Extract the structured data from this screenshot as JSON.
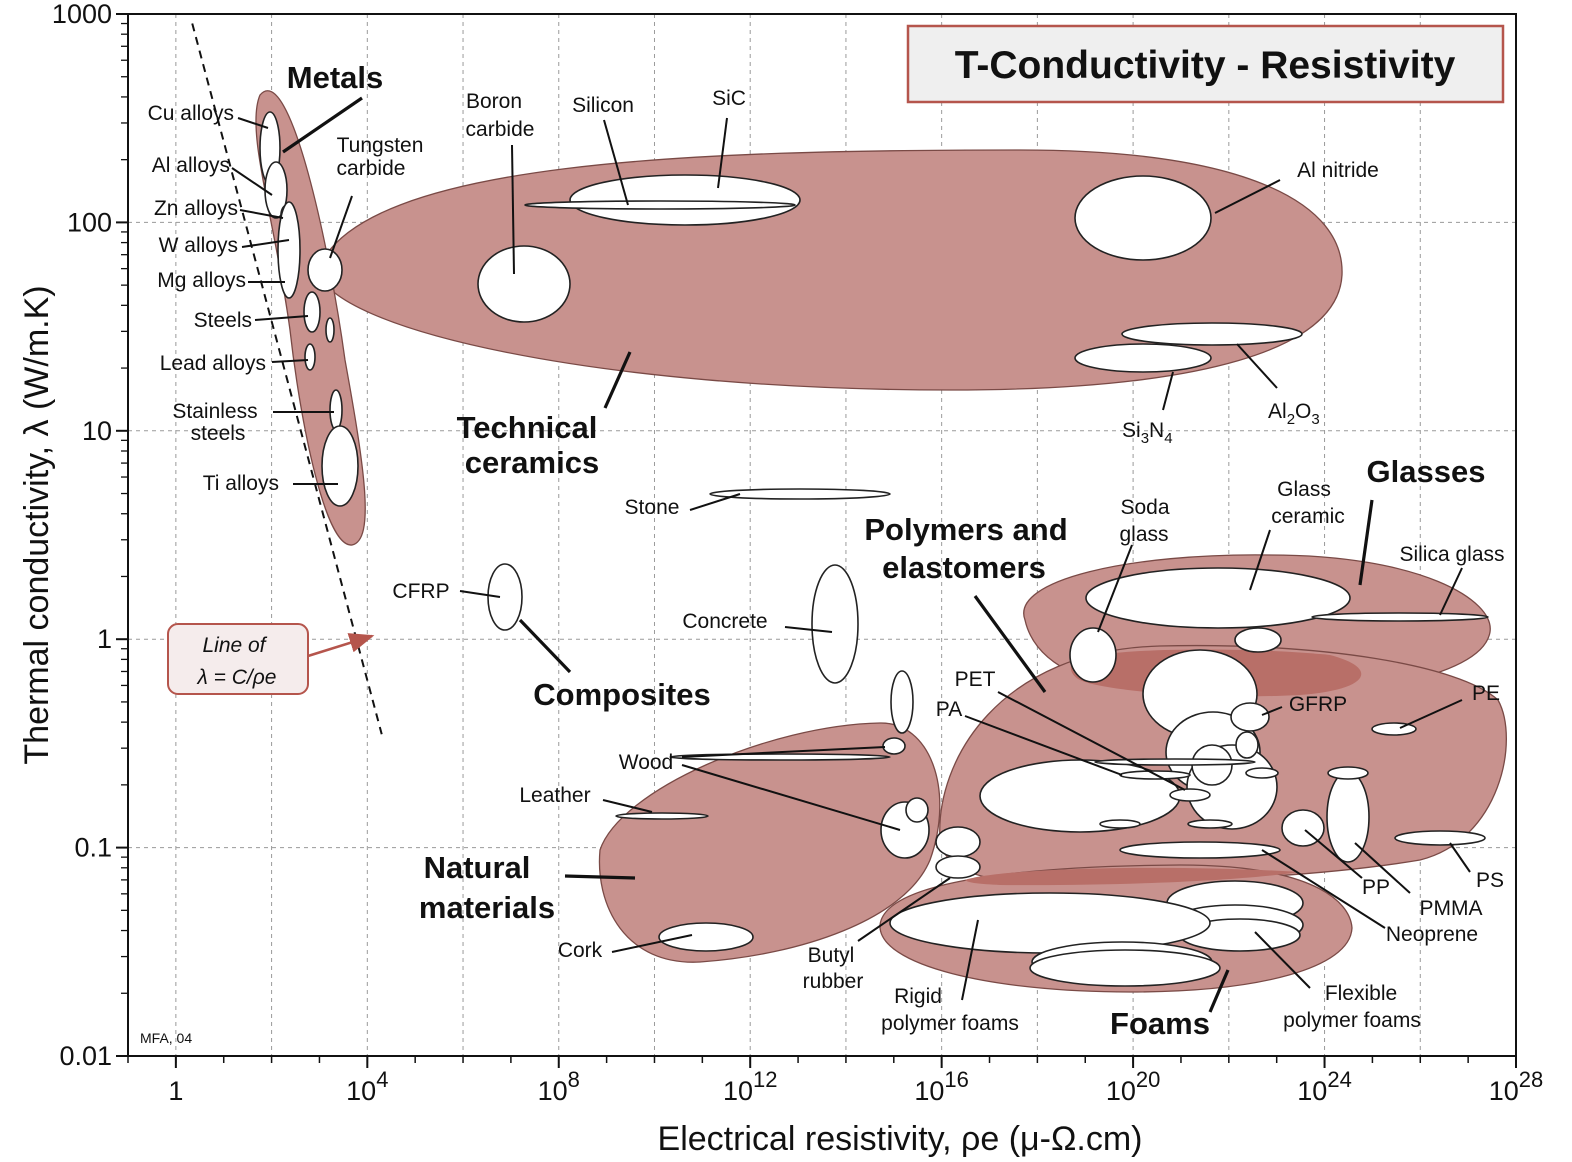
{
  "chart_data": {
    "type": "scatter",
    "title": "T-Conductivity - Resistivity",
    "credit": "MFA, 04",
    "xlabel": "Electrical resistivity, ρe (μ-Ω.cm)",
    "ylabel": "Thermal conductivity, λ (W/m.K)",
    "x_scale": "log",
    "y_scale": "log",
    "xlim": [
      0.1,
      1e+28
    ],
    "ylim": [
      0.01,
      1000
    ],
    "grid": true,
    "x_ticks": [
      {
        "value": 1,
        "label": "1"
      },
      {
        "value": 10000.0,
        "base": "10",
        "exp": "4"
      },
      {
        "value": 100000000.0,
        "base": "10",
        "exp": "8"
      },
      {
        "value": 1000000000000.0,
        "base": "10",
        "exp": "12"
      },
      {
        "value": 1e+16,
        "base": "10",
        "exp": "16"
      },
      {
        "value": 1e+20,
        "base": "10",
        "exp": "20"
      },
      {
        "value": 1e+24,
        "base": "10",
        "exp": "24"
      },
      {
        "value": 1e+28,
        "base": "10",
        "exp": "28"
      }
    ],
    "y_ticks": [
      {
        "value": 1000,
        "label": "1000"
      },
      {
        "value": 100,
        "label": "100"
      },
      {
        "value": 10,
        "label": "10"
      },
      {
        "value": 1,
        "label": "1"
      },
      {
        "value": 0.1,
        "label": "0.1"
      },
      {
        "value": 0.01,
        "label": "0.01"
      }
    ],
    "guide_line": {
      "label_line1": "Line of",
      "label_line2": "λ = C/ρe",
      "from": [
        2.2,
        900
      ],
      "to": [
        20000.0,
        0.35
      ]
    },
    "families": [
      {
        "name": "Metals",
        "x_range": [
          1.5,
          60
        ],
        "y_range": [
          3,
          450
        ]
      },
      {
        "name": "Technical ceramics",
        "x_range": [
          15,
          3e+24
        ],
        "y_range": [
          17,
          230
        ]
      },
      {
        "name": "Composites",
        "x": 1000000.0,
        "y": 1.4
      },
      {
        "name": "Natural materials",
        "x_range": [
          100000000.0,
          1000000000000000.0
        ],
        "y_range": [
          0.02,
          0.4
        ]
      },
      {
        "name": "Polymers and elastomers",
        "x_range": [
          1e+16,
          1e+27
        ],
        "y_range": [
          0.06,
          0.9
        ]
      },
      {
        "name": "Glasses",
        "x_range": [
          1e+17,
          1e+27
        ],
        "y_range": [
          0.55,
          4
        ]
      },
      {
        "name": "Foams",
        "x_range": [
          100000000000000.0,
          1e+25
        ],
        "y_range": [
          0.018,
          0.08
        ]
      }
    ],
    "materials": [
      {
        "name": "Cu alloys",
        "family": "Metals",
        "x_range": [
          1.5,
          4.5
        ],
        "y_range": [
          160,
          400
        ]
      },
      {
        "name": "Al alloys",
        "family": "Metals",
        "x_range": [
          2.5,
          8
        ],
        "y_range": [
          76,
          240
        ]
      },
      {
        "name": "Zn alloys",
        "family": "Metals",
        "x_range": [
          5.5,
          7
        ],
        "y_range": [
          100,
          135
        ]
      },
      {
        "name": "W alloys",
        "family": "Metals",
        "x_range": [
          5,
          10
        ],
        "y_range": [
          100,
          170
        ]
      },
      {
        "name": "Mg alloys",
        "family": "Metals",
        "x_range": [
          4,
          15
        ],
        "y_range": [
          50,
          150
        ]
      },
      {
        "name": "Steels",
        "family": "Metals",
        "x_range": [
          10,
          40
        ],
        "y_range": [
          25,
          50
        ]
      },
      {
        "name": "Lead alloys",
        "family": "Metals",
        "x_range": [
          15,
          25
        ],
        "y_range": [
          20,
          37
        ]
      },
      {
        "name": "Stainless steels",
        "family": "Metals",
        "x_range": [
          60,
          90
        ],
        "y_range": [
          11,
          19
        ]
      },
      {
        "name": "Ti alloys",
        "family": "Metals",
        "x_range": [
          40,
          200
        ],
        "y_range": [
          5,
          12
        ]
      },
      {
        "name": "Tungsten carbide",
        "family": "Technical ceramics",
        "x_range": [
          20,
          120
        ],
        "y_range": [
          50,
          80
        ]
      },
      {
        "name": "Boron carbide",
        "family": "Technical ceramics",
        "x_range": [
          100000.0,
          10000000.0
        ],
        "y_range": [
          30,
          90
        ]
      },
      {
        "name": "Silicon",
        "family": "Technical ceramics",
        "x_range": [
          1000000.0,
          1000000000000.0
        ],
        "y_range": [
          125,
          150
        ]
      },
      {
        "name": "SiC",
        "family": "Technical ceramics",
        "x_range": [
          100000000.0,
          10000000000000.0
        ],
        "y_range": [
          105,
          180
        ]
      },
      {
        "name": "Al nitride",
        "family": "Technical ceramics",
        "x_range": [
          1e+18,
          1e+21
        ],
        "y_range": [
          80,
          220
        ]
      },
      {
        "name": "Al2O3",
        "family": "Technical ceramics",
        "x_range": [
          3e+20,
          3e+24
        ],
        "y_range": [
          27,
          38
        ]
      },
      {
        "name": "Si3N4",
        "family": "Technical ceramics",
        "x_range": [
          1e+18,
          1e+21
        ],
        "y_range": [
          20,
          30
        ]
      },
      {
        "name": "Stone",
        "family": null,
        "x_range": [
          1000000000.0,
          100000000000000.0
        ],
        "y_range": [
          4.5,
          5.5
        ]
      },
      {
        "name": "CFRP",
        "family": "Composites",
        "x_range": [
          400000.0,
          3000000.0
        ],
        "y_range": [
          0.5,
          3.3
        ]
      },
      {
        "name": "Concrete",
        "family": null,
        "x_range": [
          10000000000000.0,
          30000000000000.0
        ],
        "y_range": [
          0.4,
          3
        ]
      },
      {
        "name": "Wood",
        "family": "Natural materials",
        "x_range": [
          200000000000000.0,
          2000000000000000.0
        ],
        "y_range": [
          0.1,
          0.35
        ]
      },
      {
        "name": "Leather",
        "family": "Natural materials",
        "x_range": [
          100000000.0,
          10000000000.0
        ],
        "y_range": [
          0.14,
          0.16
        ]
      },
      {
        "name": "Cork",
        "family": "Natural materials",
        "x_range": [
          1000000000.0,
          100000000000.0
        ],
        "y_range": [
          0.035,
          0.05
        ]
      },
      {
        "name": "Butyl rubber",
        "family": "Polymers and elastomers",
        "x_range": [
          1000000000000000.0,
          1e+16
        ],
        "y_range": [
          0.08,
          0.15
        ]
      },
      {
        "name": "PET",
        "family": "Polymers and elastomers",
        "x_range": [
          1e+20,
          1e+22
        ],
        "y_range": [
          0.14,
          0.24
        ]
      },
      {
        "name": "PA",
        "family": "Polymers and elastomers",
        "x_range": [
          1e+19,
          1e+21
        ],
        "y_range": [
          0.23,
          0.25
        ]
      },
      {
        "name": "GFRP",
        "family": "Polymers and elastomers",
        "x_range": [
          5e+21,
          5e+22
        ],
        "y_range": [
          0.4,
          0.5
        ]
      },
      {
        "name": "PE",
        "family": "Polymers and elastomers",
        "x_range": [
          5e+24,
          2e+25
        ],
        "y_range": [
          0.33,
          0.4
        ]
      },
      {
        "name": "PP",
        "family": "Polymers and elastomers",
        "x_range": [
          1e+23,
          1e+24
        ],
        "y_range": [
          0.1,
          0.15
        ]
      },
      {
        "name": "PMMA",
        "family": "Polymers and elastomers",
        "x_range": [
          1e+23,
          1e+24
        ],
        "y_range": [
          0.1,
          0.22
        ]
      },
      {
        "name": "PS",
        "family": "Polymers and elastomers",
        "x_range": [
          1e+25,
          1e+27
        ],
        "y_range": [
          0.1,
          0.13
        ]
      },
      {
        "name": "Neoprene",
        "family": "Polymers and elastomers",
        "x_range": [
          1e+18,
          1e+22
        ],
        "y_range": [
          0.08,
          0.1
        ]
      },
      {
        "name": "Soda glass",
        "family": "Glasses",
        "x_range": [
          1e+17,
          1e+19
        ],
        "y_range": [
          0.7,
          1.3
        ]
      },
      {
        "name": "Glass ceramic",
        "family": "Glasses",
        "x_range": [
          1e+18,
          1e+22
        ],
        "y_range": [
          1.2,
          2
        ]
      },
      {
        "name": "Silica glass",
        "family": "Glasses",
        "x_range": [
          1e+22,
          1e+27
        ],
        "y_range": [
          1.28,
          1.42
        ]
      },
      {
        "name": "Rigid polymer foams",
        "family": "Foams",
        "x_range": [
          100000000000000.0,
          1e+21
        ],
        "y_range": [
          0.025,
          0.05
        ]
      },
      {
        "name": "Flexible polymer foams",
        "family": "Foams",
        "x_range": [
          1e+18,
          1e+23
        ],
        "y_range": [
          0.03,
          0.07
        ]
      }
    ]
  },
  "labels": {
    "cu_alloys": "Cu alloys",
    "al_alloys": "Al alloys",
    "zn_alloys": "Zn alloys",
    "w_alloys": "W alloys",
    "mg_alloys": "Mg alloys",
    "steels": "Steels",
    "lead_alloys": "Lead alloys",
    "stainless_1": "Stainless",
    "stainless_2": "steels",
    "ti_alloys": "Ti alloys",
    "tungsten_1": "Tungsten",
    "tungsten_2": "carbide",
    "boron_1": "Boron",
    "boron_2": "carbide",
    "silicon": "Silicon",
    "sic": "SiC",
    "al_nitride": "Al nitride",
    "al2o3_a": "Al",
    "al2o3_b": "2",
    "al2o3_c": "O",
    "al2o3_d": "3",
    "si3n4_a": "Si",
    "si3n4_b": "3",
    "si3n4_c": "N",
    "si3n4_d": "4",
    "stone": "Stone",
    "cfrp": "CFRP",
    "concrete": "Concrete",
    "wood": "Wood",
    "leather": "Leather",
    "cork": "Cork",
    "butyl_1": "Butyl",
    "butyl_2": "rubber",
    "rigid_1": "Rigid",
    "rigid_2": "polymer foams",
    "flexible_1": "Flexible",
    "flexible_2": "polymer foams",
    "pet": "PET",
    "pa": "PA",
    "gfrp": "GFRP",
    "pe": "PE",
    "pp": "PP",
    "pmma": "PMMA",
    "ps": "PS",
    "neoprene": "Neoprene",
    "soda_1": "Soda",
    "soda_2": "glass",
    "glass_ceramic_1": "Glass",
    "glass_ceramic_2": "ceramic",
    "silica_glass": "Silica glass",
    "fam_metals": "Metals",
    "fam_ceramics_1": "Technical",
    "fam_ceramics_2": "ceramics",
    "fam_composites": "Composites",
    "fam_natural_1": "Natural",
    "fam_natural_2": "materials",
    "fam_polymers_1": "Polymers and",
    "fam_polymers_2": "elastomers",
    "fam_glasses": "Glasses",
    "fam_foams": "Foams"
  },
  "colors": {
    "envelope_fill": "#c8928e",
    "envelope_overlap": "#b86f68",
    "title_box_border": "#b5554c",
    "title_box_fill": "#efefef",
    "arrow_color": "#b5554c"
  }
}
